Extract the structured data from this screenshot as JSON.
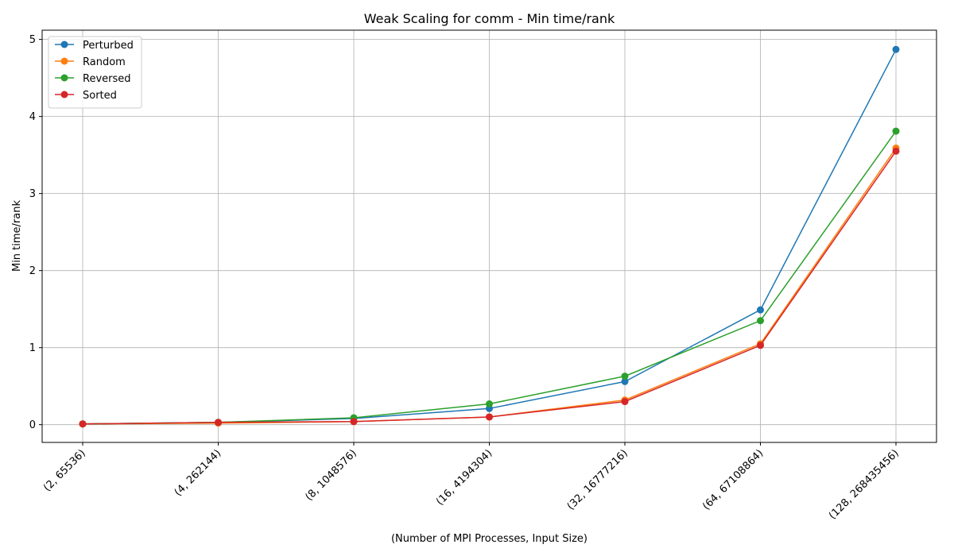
{
  "chart_data": {
    "type": "line",
    "title": "Weak Scaling for comm - Min time/rank",
    "xlabel": "(Number of MPI Processes, Input Size)",
    "ylabel": "Min time/rank",
    "categories": [
      "(2, 65536)",
      "(4, 262144)",
      "(8, 1048576)",
      "(16, 4194304)",
      "(32, 16777216)",
      "(64, 67108864)",
      "(128, 268435456)"
    ],
    "yticks": [
      0,
      1,
      2,
      3,
      4,
      5
    ],
    "ylim": [
      -0.23,
      5.12
    ],
    "grid": true,
    "legend_position": "top-left",
    "series": [
      {
        "name": "Perturbed",
        "color": "#1f77b4",
        "values": [
          0.01,
          0.03,
          0.08,
          0.21,
          0.56,
          1.49,
          4.87
        ]
      },
      {
        "name": "Random",
        "color": "#ff7f0e",
        "values": [
          0.01,
          0.02,
          0.04,
          0.1,
          0.32,
          1.05,
          3.59
        ]
      },
      {
        "name": "Reversed",
        "color": "#2ca02c",
        "values": [
          0.01,
          0.03,
          0.09,
          0.27,
          0.63,
          1.35,
          3.81
        ]
      },
      {
        "name": "Sorted",
        "color": "#d62728",
        "values": [
          0.01,
          0.03,
          0.04,
          0.1,
          0.3,
          1.03,
          3.55
        ]
      }
    ]
  }
}
